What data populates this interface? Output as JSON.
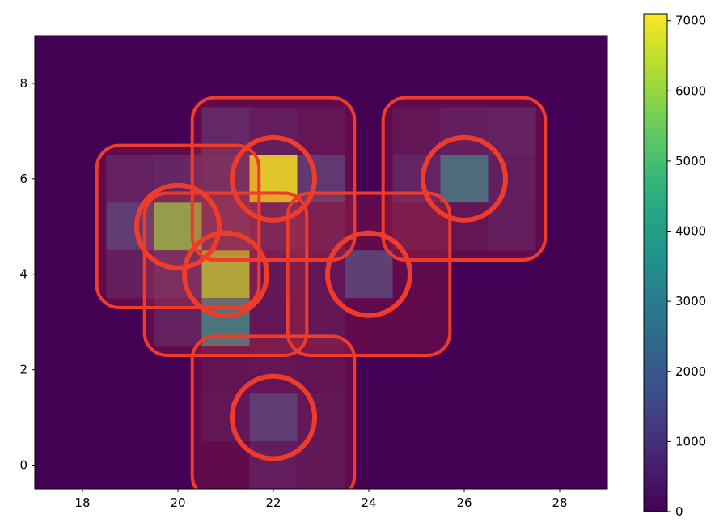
{
  "chart_data": {
    "type": "heatmap",
    "title": "",
    "xlabel": "",
    "ylabel": "",
    "xlim": [
      17,
      29
    ],
    "ylim": [
      -0.5,
      9
    ],
    "x_ticks": [
      18,
      20,
      22,
      24,
      26,
      28
    ],
    "y_ticks": [
      0,
      2,
      4,
      6,
      8
    ],
    "grid": false,
    "colormap": "viridis",
    "colorbar": {
      "min": 0,
      "max": 7100,
      "ticks": [
        0,
        1000,
        2000,
        3000,
        4000,
        5000,
        6000,
        7000
      ]
    },
    "background_value": 0,
    "cells": [
      {
        "x": 19,
        "y": 6,
        "value": 550
      },
      {
        "x": 20,
        "y": 6,
        "value": 700
      },
      {
        "x": 21,
        "y": 6,
        "value": 850
      },
      {
        "x": 22,
        "y": 6,
        "value": 6800
      },
      {
        "x": 23,
        "y": 6,
        "value": 1200
      },
      {
        "x": 19,
        "y": 5,
        "value": 1300
      },
      {
        "x": 20,
        "y": 5,
        "value": 5500
      },
      {
        "x": 21,
        "y": 5,
        "value": 950
      },
      {
        "x": 22,
        "y": 5,
        "value": 650
      },
      {
        "x": 23,
        "y": 5,
        "value": 400
      },
      {
        "x": 19,
        "y": 4,
        "value": 500
      },
      {
        "x": 20,
        "y": 4,
        "value": 900
      },
      {
        "x": 21,
        "y": 4,
        "value": 6000
      },
      {
        "x": 22,
        "y": 4,
        "value": 350
      },
      {
        "x": 23,
        "y": 4,
        "value": 250
      },
      {
        "x": 20,
        "y": 3,
        "value": 550
      },
      {
        "x": 21,
        "y": 3,
        "value": 3200
      },
      {
        "x": 22,
        "y": 3,
        "value": 250
      },
      {
        "x": 23,
        "y": 3,
        "value": 300
      },
      {
        "x": 24,
        "y": 4,
        "value": 1400
      },
      {
        "x": 21,
        "y": 7,
        "value": 750
      },
      {
        "x": 22,
        "y": 7,
        "value": 450
      },
      {
        "x": 23,
        "y": 7,
        "value": 250
      },
      {
        "x": 25,
        "y": 6,
        "value": 650
      },
      {
        "x": 26,
        "y": 6,
        "value": 2800
      },
      {
        "x": 27,
        "y": 6,
        "value": 500
      },
      {
        "x": 25,
        "y": 7,
        "value": 300
      },
      {
        "x": 26,
        "y": 7,
        "value": 500
      },
      {
        "x": 27,
        "y": 7,
        "value": 600
      },
      {
        "x": 25,
        "y": 5,
        "value": 300
      },
      {
        "x": 26,
        "y": 5,
        "value": 250
      },
      {
        "x": 27,
        "y": 5,
        "value": 450
      },
      {
        "x": 21,
        "y": 1,
        "value": 300
      },
      {
        "x": 22,
        "y": 1,
        "value": 1300
      },
      {
        "x": 23,
        "y": 1,
        "value": 350
      },
      {
        "x": 21,
        "y": 2,
        "value": 200
      },
      {
        "x": 22,
        "y": 2,
        "value": 250
      },
      {
        "x": 23,
        "y": 2,
        "value": 200
      },
      {
        "x": 22,
        "y": 0,
        "value": 450
      },
      {
        "x": 23,
        "y": 0,
        "value": 350
      }
    ],
    "annotations": {
      "color": "#ee3b2a",
      "circles": [
        {
          "x": 22,
          "y": 6
        },
        {
          "x": 20,
          "y": 5
        },
        {
          "x": 21,
          "y": 4
        },
        {
          "x": 24,
          "y": 4
        },
        {
          "x": 26,
          "y": 6
        },
        {
          "x": 22,
          "y": 1
        }
      ],
      "rounded_boxes": [
        {
          "x0": 18.3,
          "x1": 21.7,
          "y0": 3.3,
          "y1": 6.7
        },
        {
          "x0": 20.3,
          "x1": 23.7,
          "y0": 4.3,
          "y1": 7.7
        },
        {
          "x0": 19.3,
          "x1": 22.7,
          "y0": 2.3,
          "y1": 5.7
        },
        {
          "x0": 22.3,
          "x1": 25.7,
          "y0": 2.3,
          "y1": 5.7
        },
        {
          "x0": 24.3,
          "x1": 27.7,
          "y0": 4.3,
          "y1": 7.7
        },
        {
          "x0": 20.3,
          "x1": 23.7,
          "y0": -0.7,
          "y1": 2.7
        }
      ]
    }
  }
}
